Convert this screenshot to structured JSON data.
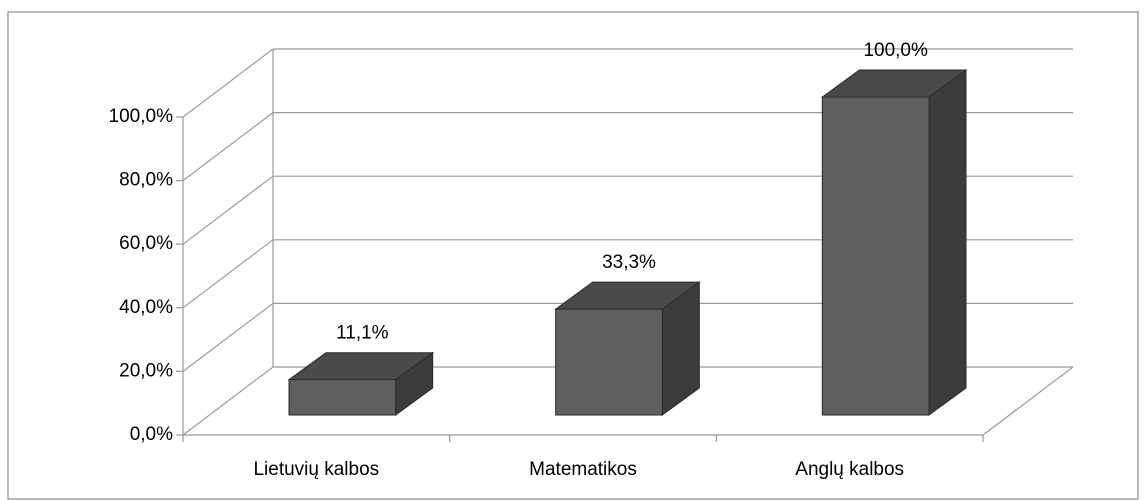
{
  "chart_data": {
    "type": "bar3d",
    "categories": [
      "Lietuvių kalbos",
      "Matematikos",
      "Anglų kalbos"
    ],
    "values": [
      11.1,
      33.3,
      100
    ],
    "value_labels": [
      "11,1%",
      "33,3%",
      "100,0%"
    ],
    "color": "#5f5f5f",
    "ylim": [
      0,
      100
    ],
    "yticks": [
      {
        "value": 0,
        "label": "0,0%"
      },
      {
        "value": 20,
        "label": "20,0%"
      },
      {
        "value": 40,
        "label": "40,0%"
      },
      {
        "value": 60,
        "label": "60,0%"
      },
      {
        "value": 80,
        "label": "80,0%"
      },
      {
        "value": 100,
        "label": "100,0%"
      }
    ],
    "grid": true
  }
}
